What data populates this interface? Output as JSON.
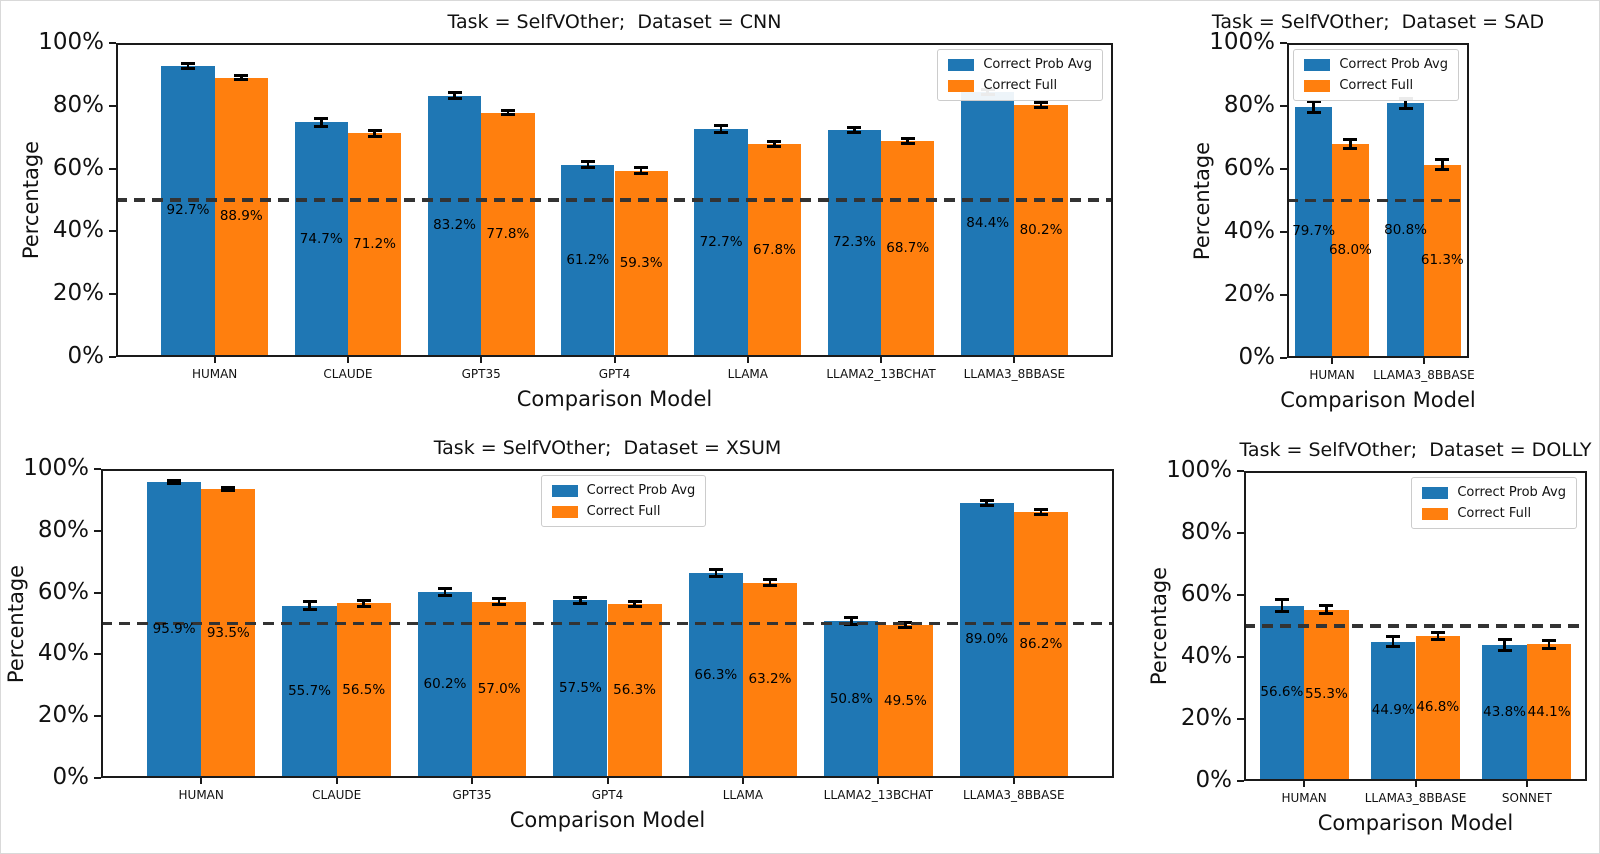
{
  "figure": {
    "series_colors": {
      "Correct Prob Avg": "#1f77b4",
      "Correct Full": "#ff7f0e"
    },
    "error_bar_color": "#000000",
    "reference_line_color": "#333333"
  },
  "chart_data": [
    {
      "type": "bar",
      "dataset_id": "CNN",
      "title": "Task = SelfVOther;  Dataset = CNN",
      "xlabel": "Comparison Model",
      "ylabel": "Percentage",
      "ylim": [
        0,
        100
      ],
      "yticks": [
        "0%",
        "20%",
        "40%",
        "60%",
        "80%",
        "100%"
      ],
      "ytick_values": [
        0,
        20,
        40,
        60,
        80,
        100
      ],
      "reference_line": 50,
      "grid": false,
      "legend_pos": "upper right",
      "categories": [
        "HUMAN",
        "CLAUDE",
        "GPT35",
        "GPT4",
        "LLAMA",
        "LLAMA2_13BCHAT",
        "LLAMA3_8BBASE"
      ],
      "series": [
        {
          "name": "Correct Prob Avg",
          "color": "#1f77b4",
          "values": [
            92.7,
            74.7,
            83.2,
            61.2,
            72.7,
            72.3,
            84.4
          ],
          "errors": [
            0.7,
            1.2,
            0.9,
            1.0,
            1.1,
            0.9,
            0.9
          ],
          "bar_labels": [
            "92.7%",
            "74.7%",
            "83.2%",
            "61.2%",
            "72.7%",
            "72.3%",
            "84.4%"
          ]
        },
        {
          "name": "Correct Full",
          "color": "#ff7f0e",
          "values": [
            88.9,
            71.2,
            77.8,
            59.3,
            67.8,
            68.7,
            80.2
          ],
          "errors": [
            0.6,
            0.9,
            0.7,
            0.9,
            0.9,
            0.8,
            0.7
          ],
          "bar_labels": [
            "88.9%",
            "71.2%",
            "77.8%",
            "59.3%",
            "67.8%",
            "68.7%",
            "80.2%"
          ]
        }
      ]
    },
    {
      "type": "bar",
      "dataset_id": "SAD",
      "title": "Task = SelfVOther;  Dataset = SAD",
      "xlabel": "Comparison Model",
      "ylabel": "Percentage",
      "ylim": [
        0,
        100
      ],
      "yticks": [
        "0%",
        "20%",
        "40%",
        "60%",
        "80%",
        "100%"
      ],
      "ytick_values": [
        0,
        20,
        40,
        60,
        80,
        100
      ],
      "reference_line": 50,
      "grid": false,
      "legend_pos": "upper right",
      "categories": [
        "HUMAN",
        "LLAMA3_8BBASE"
      ],
      "series": [
        {
          "name": "Correct Prob Avg",
          "color": "#1f77b4",
          "values": [
            79.7,
            80.8
          ],
          "errors": [
            1.8,
            1.6
          ],
          "bar_labels": [
            "79.7%",
            "80.8%"
          ]
        },
        {
          "name": "Correct Full",
          "color": "#ff7f0e",
          "values": [
            68.0,
            61.3
          ],
          "errors": [
            1.4,
            1.6
          ],
          "bar_labels": [
            "68.0%",
            "61.3%"
          ]
        }
      ]
    },
    {
      "type": "bar",
      "dataset_id": "XSUM",
      "title": "Task = SelfVOther;  Dataset = XSUM",
      "xlabel": "Comparison Model",
      "ylabel": "Percentage",
      "ylim": [
        0,
        100
      ],
      "yticks": [
        "0%",
        "20%",
        "40%",
        "60%",
        "80%",
        "100%"
      ],
      "ytick_values": [
        0,
        20,
        40,
        60,
        80,
        100
      ],
      "reference_line": 50,
      "grid": false,
      "legend_pos": "upper center",
      "categories": [
        "HUMAN",
        "CLAUDE",
        "GPT35",
        "GPT4",
        "LLAMA",
        "LLAMA2_13BCHAT",
        "LLAMA3_8BBASE"
      ],
      "series": [
        {
          "name": "Correct Prob Avg",
          "color": "#1f77b4",
          "values": [
            95.9,
            55.7,
            60.2,
            57.5,
            66.3,
            50.8,
            89.0
          ],
          "errors": [
            0.5,
            1.3,
            1.2,
            1.0,
            1.2,
            1.2,
            0.8
          ],
          "bar_labels": [
            "95.9%",
            "55.7%",
            "60.2%",
            "57.5%",
            "66.3%",
            "50.8%",
            "89.0%"
          ]
        },
        {
          "name": "Correct Full",
          "color": "#ff7f0e",
          "values": [
            93.5,
            56.5,
            57.0,
            56.3,
            63.2,
            49.5,
            86.2
          ],
          "errors": [
            0.5,
            1.0,
            1.0,
            0.8,
            1.0,
            0.9,
            0.8
          ],
          "bar_labels": [
            "93.5%",
            "56.5%",
            "57.0%",
            "56.3%",
            "63.2%",
            "49.5%",
            "86.2%"
          ]
        }
      ]
    },
    {
      "type": "bar",
      "dataset_id": "DOLLY",
      "title": "Task = SelfVOther;  Dataset = DOLLY",
      "xlabel": "Comparison Model",
      "ylabel": "Percentage",
      "ylim": [
        0,
        100
      ],
      "yticks": [
        "0%",
        "20%",
        "40%",
        "60%",
        "80%",
        "100%"
      ],
      "ytick_values": [
        0,
        20,
        40,
        60,
        80,
        100
      ],
      "reference_line": 50,
      "grid": false,
      "legend_pos": "upper right",
      "categories": [
        "HUMAN",
        "LLAMA3_8BBASE",
        "SONNET"
      ],
      "series": [
        {
          "name": "Correct Prob Avg",
          "color": "#1f77b4",
          "values": [
            56.6,
            44.9,
            43.8
          ],
          "errors": [
            1.9,
            1.6,
            1.8
          ],
          "bar_labels": [
            "56.6%",
            "44.9%",
            "43.8%"
          ]
        },
        {
          "name": "Correct Full",
          "color": "#ff7f0e",
          "values": [
            55.3,
            46.8,
            44.1
          ],
          "errors": [
            1.3,
            1.2,
            1.2
          ],
          "bar_labels": [
            "55.3%",
            "46.8%",
            "44.1%"
          ]
        }
      ]
    }
  ]
}
